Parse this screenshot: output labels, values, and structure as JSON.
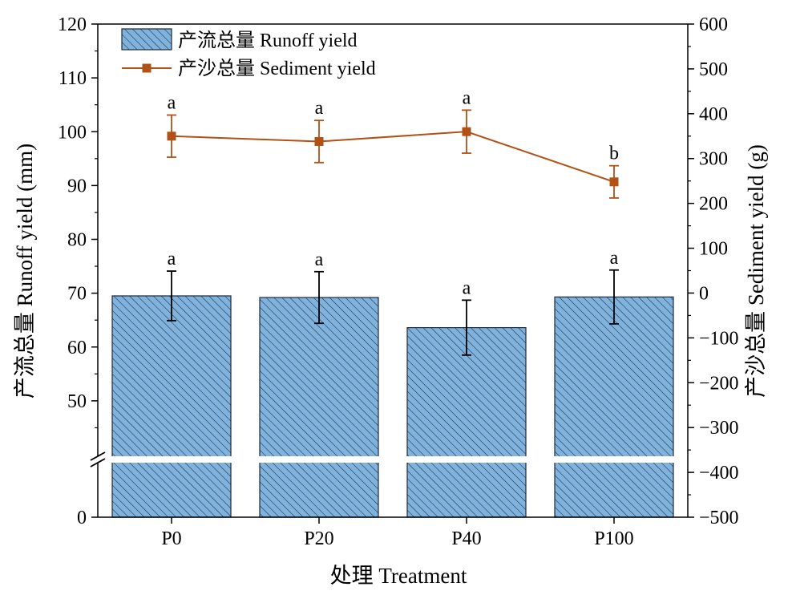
{
  "chart_data": {
    "type": "bar",
    "categories": [
      "P0",
      "P20",
      "P40",
      "P100"
    ],
    "xlabel": "处理 Treatment",
    "ylabel_left": "产流总量 Runoff yield (mm)",
    "ylabel_right": "产沙总量 Sediment yield (g)",
    "left_axis": {
      "ticks": [
        "0",
        "50",
        "60",
        "70",
        "80",
        "90",
        "100",
        "110",
        "120"
      ],
      "range_upper": [
        40,
        120
      ],
      "axis_break": "between 0 and 50"
    },
    "right_axis": {
      "ticks": [
        "-500",
        "-400",
        "-300",
        "-200",
        "-100",
        "0",
        "100",
        "200",
        "300",
        "400",
        "500",
        "600"
      ],
      "range": [
        -500,
        600
      ]
    },
    "series": [
      {
        "name": "产流总量 Runoff yield",
        "kind": "bar",
        "axis": "left",
        "values": [
          69.5,
          69.2,
          63.6,
          69.3
        ],
        "error": [
          4.6,
          4.8,
          5.1,
          5.0
        ],
        "labels": [
          "a",
          "a",
          "a",
          "a"
        ],
        "color": "#7fb2dd",
        "hatch": true
      },
      {
        "name": "产沙总量 Sediment yield",
        "kind": "line",
        "axis": "right",
        "values": [
          350,
          338,
          360,
          248
        ],
        "error": [
          47,
          47,
          48,
          36
        ],
        "labels": [
          "a",
          "a",
          "a",
          "b"
        ],
        "color": "#b25116",
        "marker": "square"
      }
    ],
    "legend_position": "top-left"
  }
}
